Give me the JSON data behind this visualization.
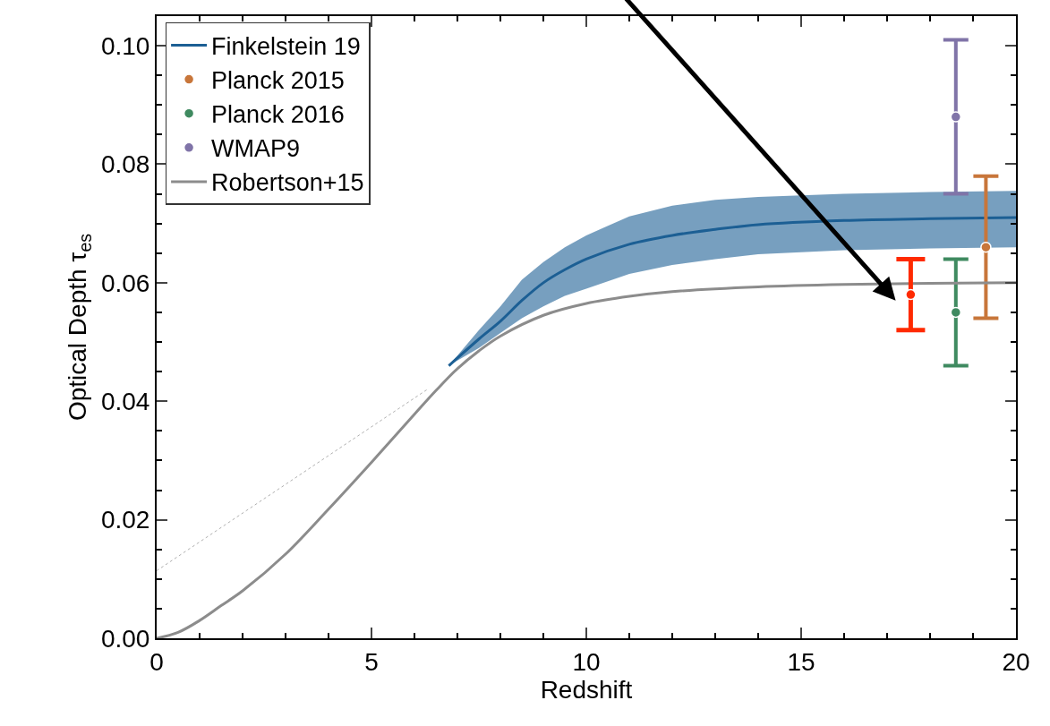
{
  "chart_data": {
    "type": "line",
    "xlabel": "Redshift",
    "ylabel": "Optical Depth τ$_{es}$",
    "xlim": [
      0,
      20
    ],
    "xticks": [
      0,
      5,
      10,
      15,
      20
    ],
    "ylim": [
      0,
      0.105
    ],
    "yticks": [
      {
        "value": 0,
        "label": "0.00"
      },
      {
        "value": 0.02,
        "label": "0.02"
      },
      {
        "value": 0.04,
        "label": "0.04"
      },
      {
        "value": 0.06,
        "label": "0.06"
      },
      {
        "value": 0.08,
        "label": "0.08"
      },
      {
        "value": 0.1,
        "label": "0.10"
      }
    ],
    "legend": "top left",
    "series": [
      {
        "name": "Finkelstein 19",
        "color": "#1c5f94",
        "x": [
          6.8,
          7.5,
          8,
          8.5,
          9,
          9.5,
          10,
          11,
          12,
          13,
          14,
          16,
          18,
          20
        ],
        "values": [
          0.046,
          0.0505,
          0.0535,
          0.057,
          0.06,
          0.0622,
          0.064,
          0.0665,
          0.068,
          0.069,
          0.0698,
          0.0705,
          0.0708,
          0.071
        ],
        "lower": [
          0.046,
          0.049,
          0.0515,
          0.054,
          0.056,
          0.0578,
          0.059,
          0.0615,
          0.063,
          0.064,
          0.0648,
          0.0655,
          0.0658,
          0.066
        ],
        "upper": [
          0.046,
          0.052,
          0.056,
          0.0605,
          0.0635,
          0.066,
          0.068,
          0.0712,
          0.073,
          0.074,
          0.0745,
          0.075,
          0.0753,
          0.0755
        ]
      },
      {
        "name": "Planck 2015",
        "type": "scatter",
        "color": "#c8763a",
        "x": [
          19.3
        ],
        "values": [
          0.066
        ],
        "errors": [
          [
            0.054,
            0.078
          ]
        ]
      },
      {
        "name": "Planck 2016",
        "type": "scatter",
        "color": "#3f8a60",
        "x": [
          18.6
        ],
        "values": [
          0.055
        ],
        "errors": [
          [
            0.046,
            0.064
          ]
        ]
      },
      {
        "name": "WMAP9",
        "type": "scatter",
        "color": "#8074a8",
        "x": [
          18.6
        ],
        "values": [
          0.088
        ],
        "errors": [
          [
            0.075,
            0.101
          ]
        ]
      },
      {
        "name": "Robertson+15",
        "color": "#8c8c8c",
        "x": [
          0,
          0.5,
          1,
          1.5,
          2,
          3,
          4,
          5,
          6,
          6.5,
          7,
          7.5,
          8,
          9,
          10,
          11,
          12,
          14,
          16,
          18,
          20
        ],
        "values": [
          0,
          0.001,
          0.003,
          0.0055,
          0.008,
          0.0142,
          0.0218,
          0.0297,
          0.0378,
          0.0418,
          0.0455,
          0.0485,
          0.051,
          0.0545,
          0.0565,
          0.0577,
          0.0585,
          0.0593,
          0.0597,
          0.0599,
          0.06
        ]
      },
      {
        "color": "#b0b0b0",
        "line_style": "dotted",
        "x": [
          0,
          6.3
        ],
        "values": [
          0.0114,
          0.042
        ]
      },
      {
        "type": "scatter",
        "color": "#ff2a00",
        "x": [
          17.55
        ],
        "values": [
          0.058
        ],
        "errors": [
          [
            0.052,
            0.064
          ]
        ]
      }
    ]
  }
}
